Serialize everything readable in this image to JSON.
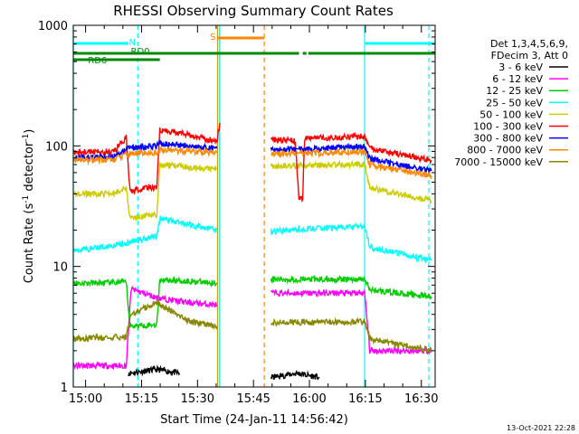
{
  "chart_data": {
    "type": "line",
    "title": "RHESSI Observing Summary Count Rates",
    "xlabel": "Start Time (24-Jan-11 14:56:42)",
    "ylabel_main": "Count Rate (s",
    "ylabel_sup1": "-1",
    "ylabel_mid": " detector",
    "ylabel_sup2": "-1",
    "ylabel_end": ")",
    "y_scale": "log",
    "ylim": [
      1,
      1000
    ],
    "xlim_minutes": [
      0,
      97
    ],
    "x_ticks": [
      {
        "label": "15:00",
        "min": 3.3
      },
      {
        "label": "15:15",
        "min": 18.3
      },
      {
        "label": "15:30",
        "min": 33.3
      },
      {
        "label": "15:45",
        "min": 48.3
      },
      {
        "label": "16:00",
        "min": 63.3
      },
      {
        "label": "16:15",
        "min": 78.3
      },
      {
        "label": "16:30",
        "min": 93.3
      }
    ],
    "y_ticks": [
      {
        "label": "1",
        "value": 1
      },
      {
        "label": "10",
        "value": 10
      },
      {
        "label": "100",
        "value": 100
      },
      {
        "label": "1000",
        "value": 1000
      }
    ],
    "legend_header": [
      "Det 1,3,4,5,6,9,",
      "FDecim 3, Att 0"
    ],
    "series": [
      {
        "name": "3 - 6 keV",
        "color": "#000000",
        "segments": [
          [
            [
              14.8,
              1.3
            ],
            [
              22.4,
              1.4
            ],
            [
              28.5,
              1.3
            ]
          ],
          [
            [
              53,
              1.2
            ],
            [
              60,
              1.3
            ],
            [
              66,
              1.2
            ]
          ]
        ]
      },
      {
        "name": "6 - 12 keV",
        "color": "#ff00ff",
        "segments": [
          [
            [
              0,
              1.5
            ],
            [
              14.2,
              1.5
            ],
            [
              15.5,
              6.5
            ],
            [
              22.4,
              5.5
            ],
            [
              31,
              5.0
            ],
            [
              38.5,
              4.8
            ]
          ],
          [
            [
              53,
              6.0
            ],
            [
              78.1,
              6.0
            ],
            [
              79.5,
              2.0
            ],
            [
              96,
              2.0
            ]
          ]
        ]
      },
      {
        "name": "12 - 25 keV",
        "color": "#00cc00",
        "segments": [
          [
            [
              0,
              7.2
            ],
            [
              14.2,
              7.4
            ],
            [
              15.2,
              3.2
            ],
            [
              22.4,
              3.3
            ],
            [
              23.2,
              7.8
            ],
            [
              38.5,
              7.3
            ]
          ],
          [
            [
              53,
              7.8
            ],
            [
              78.1,
              7.8
            ],
            [
              79.5,
              6.4
            ],
            [
              96,
              5.6
            ]
          ]
        ]
      },
      {
        "name": "25 - 50 keV",
        "color": "#00ffff",
        "segments": [
          [
            [
              0,
              13.5
            ],
            [
              14.2,
              15.5
            ],
            [
              15.2,
              16.0
            ],
            [
              22.4,
              18.0
            ],
            [
              23.2,
              25.0
            ],
            [
              38.5,
              20.0
            ]
          ],
          [
            [
              53,
              19.5
            ],
            [
              63,
              20.5
            ],
            [
              78.1,
              21.5
            ],
            [
              79.5,
              14.5
            ],
            [
              96,
              11.2
            ]
          ]
        ]
      },
      {
        "name": "50 - 100 keV",
        "color": "#cccc00",
        "segments": [
          [
            [
              0,
              40.0
            ],
            [
              11.0,
              40.0
            ],
            [
              14.2,
              46.0
            ],
            [
              15.2,
              25.0
            ],
            [
              22.4,
              27.0
            ],
            [
              23.2,
              70.0
            ],
            [
              38.5,
              64.0
            ]
          ],
          [
            [
              53,
              68.0
            ],
            [
              78.1,
              70.0
            ],
            [
              79.5,
              45.0
            ],
            [
              96,
              35.0
            ]
          ]
        ]
      },
      {
        "name": "100 - 300 keV",
        "color": "#ff0000",
        "segments": [
          [
            [
              0,
              88.0
            ],
            [
              11.0,
              90.0
            ],
            [
              14.2,
              118.0
            ],
            [
              15.2,
              42.0
            ],
            [
              22.4,
              46.0
            ],
            [
              23.2,
              135.0
            ],
            [
              30.0,
              125.0
            ],
            [
              38.5,
              110.0
            ],
            [
              39.3,
              155.0
            ]
          ],
          [
            [
              53,
              112.0
            ],
            [
              59.5,
              110.0
            ],
            [
              60.5,
              37.0
            ],
            [
              61.5,
              37.0
            ],
            [
              62.0,
              115.0
            ],
            [
              78.1,
              120.0
            ],
            [
              79.5,
              95.0
            ],
            [
              96,
              76.0
            ]
          ]
        ]
      },
      {
        "name": "300 - 800 keV",
        "color": "#0000ff",
        "segments": [
          [
            [
              0,
              80.0
            ],
            [
              11.0,
              82.0
            ],
            [
              14.2,
              95.0
            ],
            [
              15.2,
              96.0
            ],
            [
              22.4,
              100.0
            ],
            [
              23.2,
              105.0
            ],
            [
              38.5,
              95.0
            ]
          ],
          [
            [
              53,
              92.0
            ],
            [
              63,
              95.0
            ],
            [
              78.1,
              98.0
            ],
            [
              79.5,
              78.0
            ],
            [
              96,
              62.0
            ]
          ]
        ]
      },
      {
        "name": "800 - 7000 keV",
        "color": "#ff8800",
        "segments": [
          [
            [
              0,
              76.0
            ],
            [
              11.0,
              77.0
            ],
            [
              14.2,
              85.0
            ],
            [
              15.2,
              86.0
            ],
            [
              22.4,
              88.0
            ],
            [
              23.2,
              92.0
            ],
            [
              38.5,
              88.0
            ]
          ],
          [
            [
              53,
              85.0
            ],
            [
              63,
              87.0
            ],
            [
              78.1,
              90.0
            ],
            [
              79.5,
              70.0
            ],
            [
              96,
              56.0
            ]
          ]
        ]
      },
      {
        "name": "7000 - 15000 keV",
        "color": "#888800",
        "segments": [
          [
            [
              0,
              2.5
            ],
            [
              14.2,
              2.6
            ],
            [
              15.5,
              4.0
            ],
            [
              22.4,
              5.0
            ],
            [
              31,
              3.5
            ],
            [
              38.5,
              3.2
            ]
          ],
          [
            [
              53,
              3.4
            ],
            [
              78.1,
              3.5
            ],
            [
              79.5,
              2.5
            ],
            [
              96,
              2.0
            ]
          ]
        ]
      }
    ],
    "flag_bars": [
      {
        "label": "N",
        "color": "#00ffff",
        "segments": [
          [
            0,
            14.8
          ],
          [
            78.1,
            97
          ]
        ]
      },
      {
        "label": "S",
        "color": "#ff8800",
        "segments": [
          [
            38.7,
            51.2
          ]
        ]
      },
      {
        "label": "RD0",
        "color": "#008800",
        "segments": [
          [
            0,
            60.5
          ],
          [
            61.5,
            62.5
          ],
          [
            63.0,
            97
          ]
        ]
      },
      {
        "label": "RD6",
        "color": "#008800",
        "segments": [
          [
            0,
            23.2
          ]
        ]
      }
    ],
    "vertical_markers": [
      {
        "min": 0,
        "color": "#00ffff",
        "style": "solid"
      },
      {
        "min": 17.3,
        "color": "#00ffff",
        "style": "dashed"
      },
      {
        "min": 38.7,
        "color": "#ff8800",
        "style": "solid"
      },
      {
        "min": 39.2,
        "color": "#00ffff",
        "style": "solid"
      },
      {
        "min": 51.2,
        "color": "#ff8800",
        "style": "dashed"
      },
      {
        "min": 78.1,
        "color": "#00ffff",
        "style": "solid"
      },
      {
        "min": 95.3,
        "color": "#00ffff",
        "style": "dashed"
      }
    ]
  },
  "footer": {
    "timestamp": "13-Oct-2021 22:28"
  }
}
